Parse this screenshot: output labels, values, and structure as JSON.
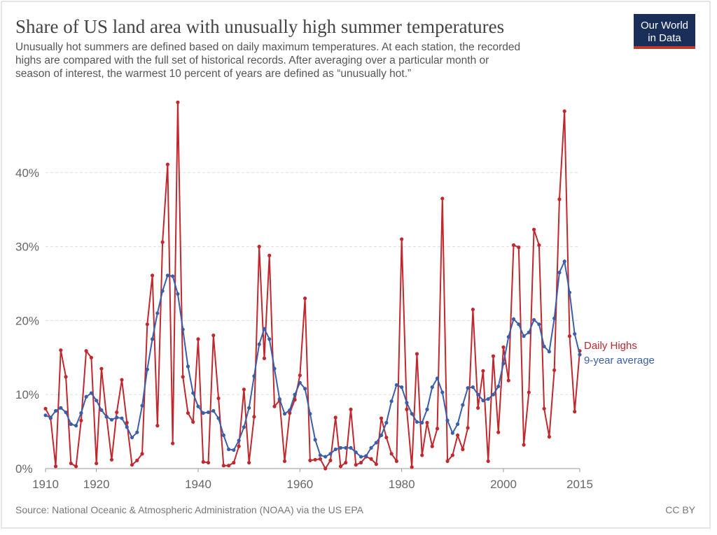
{
  "logo": [
    "Our World",
    "in Data"
  ],
  "chart_data": {
    "type": "line",
    "title": "Share of US land area with unusually high summer temperatures",
    "subtitle": [
      "Unusually hot summers are defined based on daily maximum temperatures. At each station, the recorded",
      "highs are compared with the full set of historical records. After averaging over a particular month or",
      "season of interest, the warmest 10 percent of years are defined as “unusually hot.”",
      ""
    ],
    "source": "Source: National Oceanic & Atmospheric Administration (NOAA) via the US EPA",
    "license": "CC BY",
    "x": [
      1910,
      1911,
      1912,
      1913,
      1914,
      1915,
      1916,
      1917,
      1918,
      1919,
      1920,
      1921,
      1922,
      1923,
      1924,
      1925,
      1926,
      1927,
      1928,
      1929,
      1930,
      1931,
      1932,
      1933,
      1934,
      1935,
      1936,
      1937,
      1938,
      1939,
      1940,
      1941,
      1942,
      1943,
      1944,
      1945,
      1946,
      1947,
      1948,
      1949,
      1950,
      1951,
      1952,
      1953,
      1954,
      1955,
      1956,
      1957,
      1958,
      1959,
      1960,
      1961,
      1962,
      1963,
      1964,
      1965,
      1966,
      1967,
      1968,
      1969,
      1970,
      1971,
      1972,
      1973,
      1974,
      1975,
      1976,
      1977,
      1978,
      1979,
      1980,
      1981,
      1982,
      1983,
      1984,
      1985,
      1986,
      1987,
      1988,
      1989,
      1990,
      1991,
      1992,
      1993,
      1994,
      1995,
      1996,
      1997,
      1998,
      1999,
      2000,
      2001,
      2002,
      2003,
      2004,
      2005,
      2006,
      2007,
      2008,
      2009,
      2010,
      2011,
      2012,
      2013,
      2014,
      2015
    ],
    "series": [
      {
        "name": "Daily Highs",
        "color": "#c0282e",
        "values": [
          8.1,
          6.8,
          0.3,
          16.0,
          12.4,
          0.7,
          0.3,
          6.5,
          15.9,
          15.0,
          0.7,
          13.5,
          7.0,
          1.2,
          7.6,
          12.0,
          6.2,
          0.5,
          1.1,
          2.0,
          19.5,
          26.1,
          5.8,
          30.6,
          41.1,
          3.4,
          49.5,
          12.4,
          7.5,
          6.3,
          17.5,
          0.9,
          0.8,
          18.0,
          9.5,
          0.4,
          0.4,
          0.8,
          3.0,
          10.7,
          0.8,
          7.0,
          30.0,
          14.9,
          28.8,
          8.4,
          9.2,
          1.0,
          7.5,
          9.3,
          12.6,
          23.0,
          1.1,
          1.2,
          1.3,
          0.0,
          1.1,
          6.9,
          0.3,
          0.8,
          8.0,
          0.5,
          0.8,
          1.6,
          1.3,
          0.6,
          6.8,
          4.2,
          2.0,
          1.0,
          31.0,
          8.0,
          0.2,
          15.5,
          1.8,
          6.2,
          3.0,
          5.4,
          36.5,
          1.0,
          1.8,
          4.5,
          2.6,
          5.5,
          21.5,
          8.2,
          13.2,
          1.0,
          15.2,
          4.9,
          16.4,
          11.9,
          30.2,
          29.9,
          3.2,
          10.3,
          32.3,
          30.2,
          8.1,
          4.3,
          13.3,
          36.4,
          48.3,
          17.9,
          7.7,
          15.9
        ]
      },
      {
        "name": "9-year average",
        "color": "#3a5ea8",
        "values": [
          7.2,
          6.9,
          7.8,
          8.2,
          7.6,
          6.0,
          5.8,
          7.5,
          9.7,
          10.2,
          9.2,
          7.9,
          7.0,
          6.6,
          6.9,
          6.8,
          5.6,
          4.2,
          4.9,
          8.5,
          13.4,
          17.5,
          21.0,
          24.0,
          26.1,
          26.0,
          23.6,
          18.8,
          13.8,
          10.2,
          8.4,
          7.5,
          7.6,
          7.8,
          6.8,
          4.5,
          2.6,
          2.5,
          3.8,
          5.6,
          8.2,
          12.5,
          16.8,
          18.9,
          17.5,
          13.5,
          9.4,
          7.4,
          7.9,
          10.0,
          11.6,
          10.8,
          7.4,
          3.9,
          1.8,
          1.6,
          2.0,
          2.6,
          2.8,
          2.8,
          2.8,
          2.2,
          1.6,
          1.7,
          2.8,
          3.5,
          4.5,
          6.2,
          9.1,
          11.3,
          11.0,
          8.9,
          7.4,
          6.3,
          6.2,
          8.0,
          11.0,
          12.2,
          10.3,
          6.5,
          4.8,
          6.0,
          8.6,
          10.9,
          11.0,
          10.0,
          9.2,
          9.4,
          10.0,
          11.1,
          14.2,
          17.8,
          20.2,
          19.5,
          17.9,
          18.4,
          20.1,
          19.5,
          16.5,
          15.8,
          20.3,
          26.5,
          28.0,
          23.8,
          18.2,
          15.4
        ]
      }
    ],
    "xlim": [
      1910,
      2015
    ],
    "xticks": [
      1910,
      1920,
      1940,
      1960,
      1980,
      2000,
      2015
    ],
    "ylim": [
      0,
      50
    ],
    "yticks": [
      {
        "value": 0,
        "label": "0%"
      },
      {
        "value": 10,
        "label": "10%"
      },
      {
        "value": 20,
        "label": "20%"
      },
      {
        "value": 30,
        "label": "30%"
      },
      {
        "value": 40,
        "label": "40%"
      }
    ],
    "grid": true
  }
}
